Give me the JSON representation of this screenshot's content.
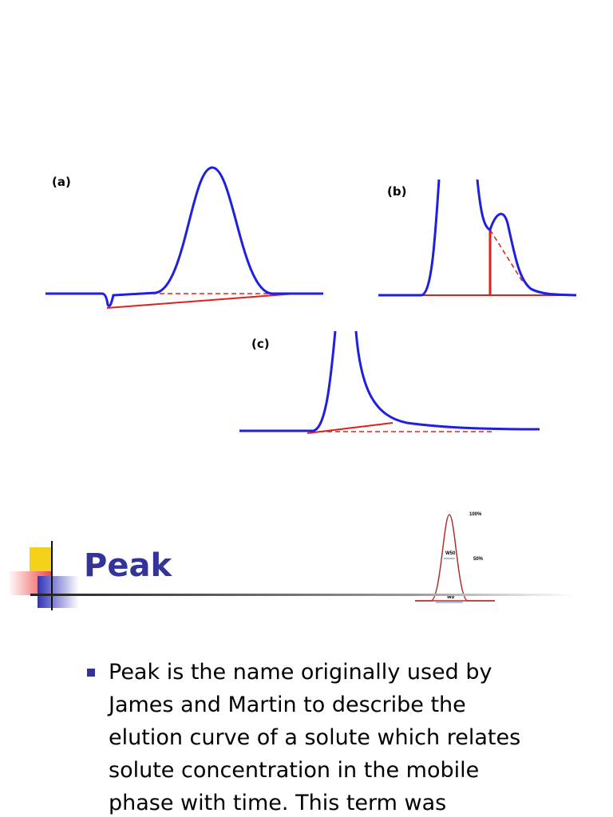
{
  "figure": {
    "labels": [
      "(a)",
      "(b)",
      "(c)"
    ]
  },
  "peak_diagram": {
    "labels": [
      "100%",
      "W50",
      "50%",
      "Wb"
    ]
  },
  "slide": {
    "title": "Peak",
    "bullets": [
      {
        "lines": [
          "Peak is the name originally used by",
          "James and Martin to describe the",
          "elution curve of a solute which relates",
          "solute concentration in the mobile",
          "phase with time. This term was"
        ]
      }
    ]
  }
}
